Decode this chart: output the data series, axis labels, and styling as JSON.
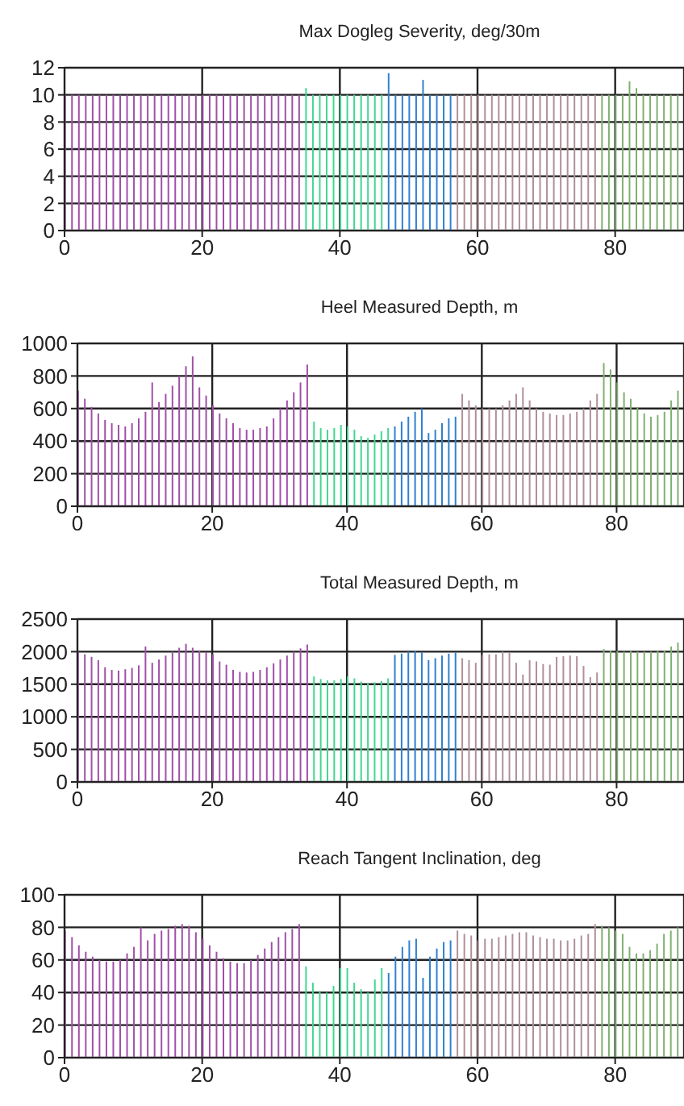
{
  "chart_data": [
    {
      "type": "bar",
      "title": "Max Dogleg Severity, deg/30m",
      "xlim": [
        0,
        90
      ],
      "xticks": [
        0,
        20,
        40,
        60,
        80
      ],
      "ylim": [
        0,
        12
      ],
      "yticks": [
        0,
        2,
        4,
        6,
        8,
        10,
        12
      ],
      "grid": true,
      "series": [
        {
          "color": "#a050a8",
          "x": [
            0,
            1,
            2,
            3,
            4,
            5,
            6,
            7,
            8,
            9,
            10,
            11,
            12,
            13,
            14,
            15,
            16,
            17,
            18,
            19,
            20,
            21,
            22,
            23,
            24,
            25,
            26,
            27,
            28,
            29,
            30,
            31,
            32,
            33,
            34
          ],
          "values": [
            10,
            10,
            10,
            10,
            10,
            10,
            10,
            10,
            10,
            10,
            10,
            10,
            10,
            10,
            10,
            10,
            10,
            10,
            10,
            10,
            10,
            10,
            10,
            10,
            10,
            10,
            10,
            10,
            10,
            10,
            10,
            10,
            10,
            10,
            10
          ]
        },
        {
          "color": "#40d890",
          "x": [
            35,
            36,
            37,
            38,
            39,
            40,
            41,
            42,
            43,
            44,
            45,
            46
          ],
          "values": [
            10.5,
            10,
            10,
            10,
            10,
            10,
            10,
            10,
            10,
            10,
            10,
            10
          ]
        },
        {
          "color": "#3080d0",
          "x": [
            47,
            48,
            49,
            50,
            51,
            52,
            53,
            54,
            55,
            56
          ],
          "values": [
            11.6,
            10,
            10,
            10,
            10,
            11.1,
            10,
            10,
            10,
            10
          ]
        },
        {
          "color": "#b09098",
          "x": [
            57,
            58,
            59,
            60,
            61,
            62,
            63,
            64,
            65,
            66,
            67,
            68,
            69,
            70,
            71,
            72,
            73,
            74,
            75,
            76,
            77
          ],
          "values": [
            10,
            10,
            10,
            10,
            10,
            10,
            10,
            10,
            10,
            10,
            10,
            10,
            10,
            10,
            10,
            10,
            10,
            10,
            10,
            10,
            10
          ]
        },
        {
          "color": "#80b070",
          "x": [
            78,
            79,
            80,
            81,
            82,
            83,
            84,
            85,
            86,
            87,
            88,
            89
          ],
          "values": [
            10,
            10,
            10,
            10,
            11,
            10.5,
            10,
            10,
            10,
            10,
            10,
            10
          ]
        }
      ]
    },
    {
      "type": "bar",
      "title": "Heel Measured Depth, m",
      "xlim": [
        0,
        90
      ],
      "xticks": [
        0,
        20,
        40,
        60,
        80
      ],
      "ylim": [
        0,
        1000
      ],
      "yticks": [
        0,
        200,
        400,
        600,
        800,
        1000
      ],
      "grid": true,
      "series": [
        {
          "color": "#a050a8",
          "x": [
            0,
            1,
            2,
            3,
            4,
            5,
            6,
            7,
            8,
            9,
            10,
            11,
            12,
            13,
            14,
            15,
            16,
            17,
            18,
            19,
            20,
            21,
            22,
            23,
            24,
            25,
            26,
            27,
            28,
            29,
            30,
            31,
            32,
            33,
            34
          ],
          "values": [
            710,
            660,
            610,
            570,
            530,
            510,
            500,
            490,
            510,
            540,
            580,
            760,
            640,
            690,
            740,
            800,
            860,
            920,
            730,
            680,
            620,
            570,
            540,
            510,
            480,
            470,
            470,
            480,
            490,
            540,
            600,
            650,
            700,
            760,
            870
          ]
        },
        {
          "color": "#40d890",
          "x": [
            35,
            36,
            37,
            38,
            39,
            40,
            41,
            42,
            43,
            44,
            45,
            46
          ],
          "values": [
            520,
            480,
            470,
            480,
            500,
            490,
            470,
            430,
            420,
            440,
            460,
            480
          ]
        },
        {
          "color": "#3080d0",
          "x": [
            47,
            48,
            49,
            50,
            51,
            52,
            53,
            54,
            55,
            56
          ],
          "values": [
            490,
            520,
            550,
            580,
            600,
            450,
            470,
            510,
            540,
            550
          ]
        },
        {
          "color": "#b09098",
          "x": [
            57,
            58,
            59,
            60,
            61,
            62,
            63,
            64,
            65,
            66,
            67,
            68,
            69,
            70,
            71,
            72,
            73,
            74,
            75,
            76,
            77
          ],
          "values": [
            690,
            650,
            620,
            600,
            600,
            600,
            620,
            650,
            690,
            730,
            650,
            600,
            580,
            570,
            560,
            560,
            570,
            580,
            600,
            650,
            690
          ]
        },
        {
          "color": "#80b070",
          "x": [
            78,
            79,
            80,
            81,
            82,
            83,
            84,
            85,
            86,
            87,
            88,
            89
          ],
          "values": [
            880,
            840,
            760,
            700,
            660,
            610,
            570,
            550,
            560,
            580,
            650,
            710
          ]
        }
      ]
    },
    {
      "type": "bar",
      "title": "Total Measured Depth, m",
      "xlim": [
        0,
        90
      ],
      "xticks": [
        0,
        20,
        40,
        60,
        80
      ],
      "ylim": [
        0,
        2500
      ],
      "yticks": [
        0,
        500,
        1000,
        1500,
        2000,
        2500
      ],
      "grid": true,
      "series": [
        {
          "color": "#a050a8",
          "x": [
            0,
            1,
            2,
            3,
            4,
            5,
            6,
            7,
            8,
            9,
            10,
            11,
            12,
            13,
            14,
            15,
            16,
            17,
            18,
            19,
            20,
            21,
            22,
            23,
            24,
            25,
            26,
            27,
            28,
            29,
            30,
            31,
            32,
            33,
            34
          ],
          "values": [
            2000,
            1960,
            1920,
            1870,
            1760,
            1720,
            1710,
            1730,
            1750,
            1790,
            2080,
            1830,
            1880,
            1940,
            2000,
            2060,
            2120,
            2060,
            2020,
            1990,
            1960,
            1850,
            1800,
            1720,
            1690,
            1680,
            1690,
            1720,
            1760,
            1820,
            1880,
            1940,
            2000,
            2050,
            2110
          ]
        },
        {
          "color": "#40d890",
          "x": [
            35,
            36,
            37,
            38,
            39,
            40,
            41,
            42,
            43,
            44,
            45,
            46
          ],
          "values": [
            1620,
            1580,
            1560,
            1560,
            1580,
            1620,
            1590,
            1540,
            1520,
            1530,
            1550,
            1590
          ]
        },
        {
          "color": "#3080d0",
          "x": [
            47,
            48,
            49,
            50,
            51,
            52,
            53,
            54,
            55,
            56
          ],
          "values": [
            1950,
            1970,
            2000,
            2010,
            1990,
            1870,
            1900,
            1940,
            1970,
            1990
          ]
        },
        {
          "color": "#b09098",
          "x": [
            57,
            58,
            59,
            60,
            61,
            62,
            63,
            64,
            65,
            66,
            67,
            68,
            69,
            70,
            71,
            72,
            73,
            74,
            75,
            76,
            77
          ],
          "values": [
            1900,
            1870,
            1830,
            1950,
            1960,
            1960,
            2000,
            1990,
            1830,
            1650,
            1870,
            1850,
            1810,
            1800,
            1920,
            1930,
            1940,
            1930,
            1780,
            1610,
            1680
          ]
        },
        {
          "color": "#80b070",
          "x": [
            78,
            79,
            80,
            81,
            82,
            83,
            84,
            85,
            86,
            87,
            88,
            89
          ],
          "values": [
            2040,
            2020,
            2010,
            2000,
            2010,
            2000,
            2000,
            2000,
            2010,
            2020,
            2080,
            2140
          ]
        }
      ]
    },
    {
      "type": "bar",
      "title": "Reach Tangent Inclination, deg",
      "xlim": [
        0,
        90
      ],
      "xticks": [
        0,
        20,
        40,
        60,
        80
      ],
      "ylim": [
        0,
        100
      ],
      "yticks": [
        0,
        20,
        40,
        60,
        80,
        100
      ],
      "grid": true,
      "series": [
        {
          "color": "#a050a8",
          "x": [
            0,
            1,
            2,
            3,
            4,
            5,
            6,
            7,
            8,
            9,
            10,
            11,
            12,
            13,
            14,
            15,
            16,
            17,
            18,
            19,
            20,
            21,
            22,
            23,
            24,
            25,
            26,
            27,
            28,
            29,
            30,
            31,
            32,
            33,
            34
          ],
          "values": [
            78,
            74,
            69,
            65,
            62,
            60,
            59,
            59,
            60,
            64,
            68,
            80,
            72,
            76,
            78,
            79,
            81,
            82,
            81,
            77,
            73,
            69,
            65,
            61,
            59,
            58,
            58,
            60,
            63,
            67,
            71,
            74,
            77,
            79,
            82
          ]
        },
        {
          "color": "#40d890",
          "x": [
            35,
            36,
            37,
            38,
            39,
            40,
            41,
            42,
            43,
            44,
            45,
            46
          ],
          "values": [
            56,
            46,
            41,
            40,
            44,
            55,
            55,
            46,
            42,
            40,
            48,
            55
          ]
        },
        {
          "color": "#3080d0",
          "x": [
            47,
            48,
            49,
            50,
            51,
            52,
            53,
            54,
            55,
            56
          ],
          "values": [
            52,
            62,
            68,
            72,
            73,
            49,
            62,
            67,
            71,
            72
          ]
        },
        {
          "color": "#b09098",
          "x": [
            57,
            58,
            59,
            60,
            61,
            62,
            63,
            64,
            65,
            66,
            67,
            68,
            69,
            70,
            71,
            72,
            73,
            74,
            75,
            76,
            77
          ],
          "values": [
            78,
            76,
            75,
            72,
            73,
            73,
            74,
            75,
            76,
            77,
            77,
            75,
            74,
            73,
            73,
            72,
            72,
            73,
            75,
            76,
            82
          ]
        },
        {
          "color": "#80b070",
          "x": [
            78,
            79,
            80,
            81,
            82,
            83,
            84,
            85,
            86,
            87,
            88,
            89
          ],
          "values": [
            81,
            80,
            78,
            76,
            68,
            64,
            64,
            66,
            70,
            76,
            78,
            80
          ]
        }
      ]
    }
  ]
}
